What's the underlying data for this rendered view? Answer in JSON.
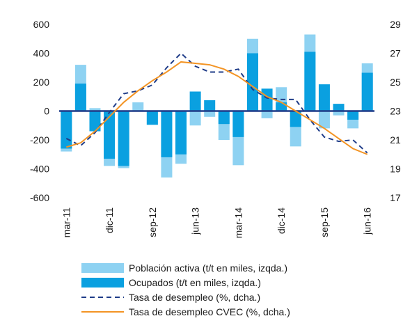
{
  "chart_data": {
    "type": "bar-line",
    "categories": [
      "mar-11",
      null,
      null,
      "dic-11",
      null,
      null,
      "sep-12",
      null,
      null,
      "jun-13",
      null,
      null,
      "mar-14",
      null,
      null,
      "dic-14",
      null,
      null,
      "sep-15",
      null,
      null,
      "jun-16"
    ],
    "series": [
      {
        "name": "Población activa (t/t en miles, izqda.)",
        "color": "#8ed2f2",
        "kind": "bar",
        "values": [
          -280,
          320,
          20,
          -380,
          -395,
          60,
          -95,
          -460,
          -365,
          -100,
          -40,
          -200,
          -375,
          500,
          -50,
          165,
          -245,
          530,
          -120,
          -30,
          -120,
          330
        ]
      },
      {
        "name": "Ocupados (t/t en miles, izqda.)",
        "color": "#0aa0e0",
        "kind": "bar",
        "values": [
          -260,
          190,
          -140,
          -330,
          -380,
          0,
          -95,
          -320,
          -300,
          135,
          75,
          -90,
          -180,
          400,
          155,
          60,
          -110,
          410,
          185,
          50,
          -60,
          265
        ]
      },
      {
        "name": "Tasa de desempleo (%, dcha.)",
        "color": "#1f3c88",
        "kind": "line",
        "dashed": true,
        "axis": "y2",
        "values": [
          21.1,
          20.6,
          21.5,
          22.9,
          24.2,
          24.4,
          24.8,
          26.0,
          27.0,
          26.1,
          25.7,
          25.7,
          25.9,
          24.5,
          23.9,
          23.8,
          23.8,
          22.4,
          21.2,
          20.9,
          21.0,
          20.1
        ]
      },
      {
        "name": "Tasa de desempleo CVEC (%, dcha.)",
        "color": "#f39424",
        "kind": "line",
        "dashed": false,
        "axis": "y2",
        "values": [
          20.5,
          20.8,
          21.6,
          22.6,
          23.6,
          24.4,
          25.1,
          25.7,
          26.4,
          26.3,
          26.2,
          25.9,
          25.4,
          24.7,
          24.0,
          23.6,
          23.0,
          22.4,
          21.8,
          21.1,
          20.4,
          20.0
        ]
      }
    ],
    "ylim": [
      -600,
      600
    ],
    "yticks": [
      600,
      400,
      200,
      0,
      -200,
      -400,
      -600
    ],
    "y2lim": [
      17,
      29
    ],
    "y2ticks": [
      29,
      27,
      25,
      23,
      21,
      19,
      17
    ]
  }
}
